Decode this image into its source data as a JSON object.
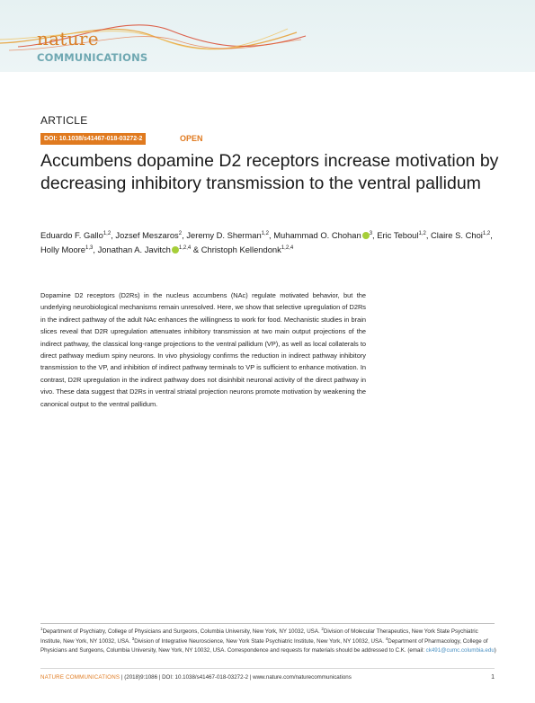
{
  "header": {
    "logo_line1": "nature",
    "logo_line2": "COMMUNICATIONS",
    "colors": {
      "banner_bg": "#e6f1f2",
      "wave_orange": "#e8a23a",
      "wave_red": "#d9482e",
      "logo_teal": "#6fa8b2"
    }
  },
  "article": {
    "type_label": "ARTICLE",
    "doi_badge": "DOI: 10.1038/s41467-018-03272-2",
    "open_label": "OPEN",
    "title": "Accumbens dopamine D2 receptors increase motivation by decreasing inhibitory transmission to the ventral pallidum",
    "authors": [
      {
        "name": "Eduardo F. Gallo",
        "aff": "1,2",
        "orcid": false,
        "sep": ", "
      },
      {
        "name": "Jozsef Meszaros",
        "aff": "2",
        "orcid": false,
        "sep": ", "
      },
      {
        "name": "Jeremy D. Sherman",
        "aff": "1,2",
        "orcid": false,
        "sep": ", "
      },
      {
        "name": "Muhammad O. Chohan",
        "aff": "3",
        "orcid": true,
        "sep": ", "
      },
      {
        "name": "Eric Teboul",
        "aff": "1,2",
        "orcid": false,
        "sep": ", "
      },
      {
        "name": "Claire S. Choi",
        "aff": "1,2",
        "orcid": false,
        "sep": ", "
      },
      {
        "name": "Holly Moore",
        "aff": "1,3",
        "orcid": false,
        "sep": ", "
      },
      {
        "name": "Jonathan A. Javitch",
        "aff": "1,2,4",
        "orcid": true,
        "sep": " & "
      },
      {
        "name": "Christoph Kellendonk",
        "aff": "1,2,4",
        "orcid": false,
        "sep": ""
      }
    ],
    "abstract": "Dopamine D2 receptors (D2Rs) in the nucleus accumbens (NAc) regulate motivated behavior, but the underlying neurobiological mechanisms remain unresolved. Here, we show that selective upregulation of D2Rs in the indirect pathway of the adult NAc enhances the willingness to work for food. Mechanistic studies in brain slices reveal that D2R upregulation attenuates inhibitory transmission at two main output projections of the indirect pathway, the classical long-range projections to the ventral pallidum (VP), as well as local collaterals to direct pathway medium spiny neurons. In vivo physiology confirms the reduction in indirect pathway inhibitory transmission to the VP, and inhibition of indirect pathway terminals to VP is sufficient to enhance motivation. In contrast, D2R upregulation in the indirect pathway does not disinhibit neuronal activity of the direct pathway in vivo. These data suggest that D2Rs in ventral striatal projection neurons promote motivation by weakening the canonical output to the ventral pallidum."
  },
  "footnote": {
    "affiliations": [
      {
        "num": "1",
        "text": "Department of Psychiatry, College of Physicians and Surgeons, Columbia University, New York, NY 10032, USA. "
      },
      {
        "num": "2",
        "text": "Division of Molecular Therapeutics, New York State Psychiatric Institute, New York, NY 10032, USA. "
      },
      {
        "num": "3",
        "text": "Division of Integrative Neuroscience, New York State Psychiatric Institute, New York, NY 10032, USA. "
      },
      {
        "num": "4",
        "text": "Department of Pharmacology, College of Physicians and Surgeons, Columbia University, New York, NY 10032, USA. Correspondence and requests for materials should be addressed to C.K. (email: "
      }
    ],
    "email": "ck491@cumc.columbia.edu",
    "closing": ")"
  },
  "footer": {
    "journal": "NATURE COMMUNICATIONS",
    "citation": " | (2018)9:1086 ",
    "doi": "| DOI: 10.1038/s41467-018-03272-2 | www.nature.com/naturecommunications",
    "page": "1"
  }
}
